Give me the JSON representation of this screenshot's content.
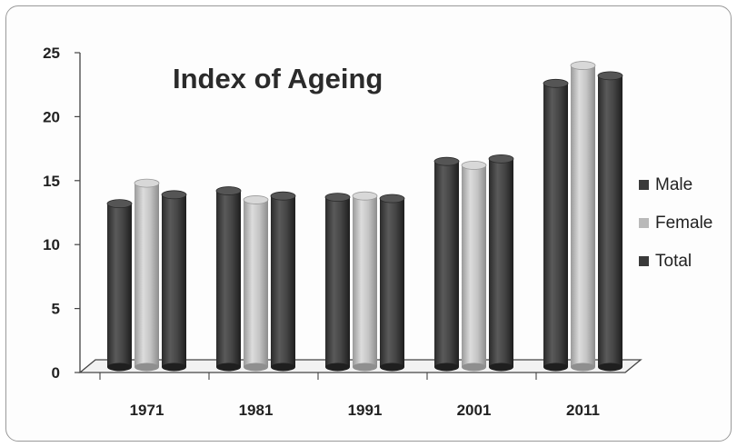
{
  "chart_data": {
    "type": "bar",
    "title": "Index of Ageing",
    "xlabel": "",
    "ylabel": "",
    "categories": [
      "1971",
      "1981",
      "1991",
      "2001",
      "2011"
    ],
    "series": [
      {
        "name": "Male",
        "values": [
          13.2,
          14.2,
          13.7,
          16.5,
          22.6
        ],
        "color": "#3a3a3a"
      },
      {
        "name": "Female",
        "values": [
          14.8,
          13.5,
          13.8,
          16.2,
          24.0
        ],
        "color": "#b9b9b9"
      },
      {
        "name": "Total",
        "values": [
          13.9,
          13.8,
          13.6,
          16.7,
          23.2
        ],
        "color": "#3a3a3a"
      }
    ],
    "ylim": [
      0,
      25
    ],
    "yticks": [
      0,
      5,
      10,
      15,
      20,
      25
    ],
    "grid": false,
    "legend_position": "right"
  }
}
